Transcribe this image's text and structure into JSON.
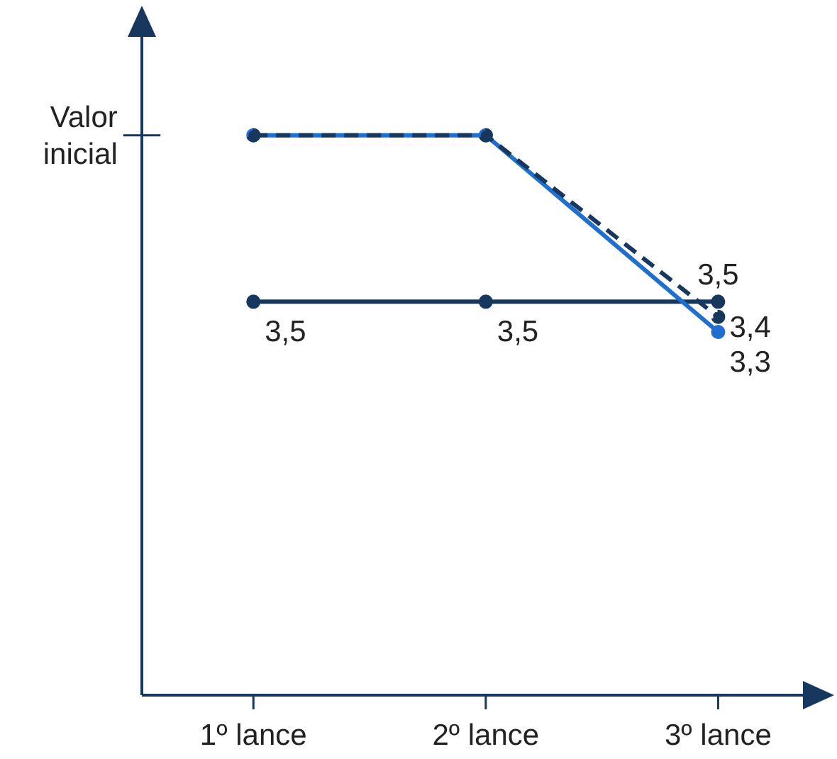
{
  "chart_data": {
    "type": "line",
    "categories": [
      "1º lance",
      "2º lance",
      "3º lance"
    ],
    "series": [
      {
        "color": "#17375e",
        "values": [
          3.5,
          3.5,
          3.5
        ],
        "value_labels": [
          "3,5",
          "3,5",
          "3,5"
        ]
      },
      {
        "color": "#1f6fcf",
        "values": [
          4.6,
          4.6,
          3.3
        ],
        "value_labels": [
          null,
          null,
          "3,3"
        ]
      },
      {
        "color": "#17375e",
        "values": [
          4.6,
          4.6,
          3.4
        ],
        "value_labels": [
          null,
          null,
          "3,4"
        ],
        "line_style": "dashed"
      }
    ],
    "ylim": [
      0.9,
      5.4
    ],
    "annotations": [
      "Valor inicial"
    ],
    "marker": "circle",
    "grid": false,
    "legend": false
  }
}
